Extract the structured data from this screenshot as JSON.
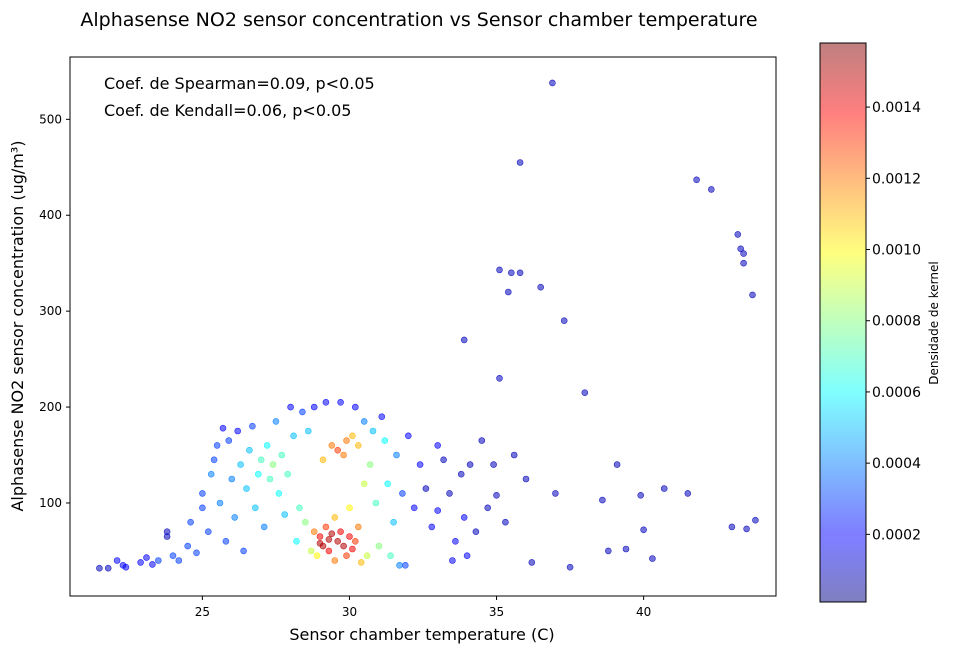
{
  "chart_data": {
    "type": "scatter",
    "title": "Alphasense NO2 sensor concentration vs Sensor chamber temperature",
    "xlabel": "Sensor chamber temperature (C)",
    "ylabel": "Alphasense NO2 sensor concentration (ug/m³)",
    "xlim": [
      20.5,
      44.5
    ],
    "ylim": [
      3,
      565
    ],
    "xticks": [
      25,
      30,
      35,
      40
    ],
    "yticks": [
      100,
      200,
      300,
      400,
      500
    ],
    "grid": false,
    "annotations": [
      "Coef. de Spearman=0.09, p<0.05",
      "Coef. de Kendall=0.06, p<0.05"
    ],
    "colorbar": {
      "label": "Densidade de kernel",
      "colormap": "jet",
      "range": [
        1e-05,
        0.00158
      ],
      "ticks": [
        0.0002,
        0.0004,
        0.0006,
        0.0008,
        0.001,
        0.0012,
        0.0014
      ],
      "tick_labels": [
        "0.0002",
        "0.0004",
        "0.0006",
        "0.0008",
        "0.0010",
        "0.0012",
        "0.0014"
      ]
    },
    "points": [
      {
        "x": 21.5,
        "y": 32,
        "d": 0.0001
      },
      {
        "x": 21.8,
        "y": 32,
        "d": 0.0001
      },
      {
        "x": 22.1,
        "y": 40,
        "d": 0.0002
      },
      {
        "x": 22.3,
        "y": 35,
        "d": 0.0002
      },
      {
        "x": 22.4,
        "y": 33,
        "d": 0.0002
      },
      {
        "x": 22.9,
        "y": 38,
        "d": 0.0002
      },
      {
        "x": 23.1,
        "y": 43,
        "d": 0.0002
      },
      {
        "x": 23.3,
        "y": 36,
        "d": 0.0002
      },
      {
        "x": 23.5,
        "y": 40,
        "d": 0.0003
      },
      {
        "x": 23.8,
        "y": 65,
        "d": 0.0001
      },
      {
        "x": 23.8,
        "y": 70,
        "d": 0.0001
      },
      {
        "x": 24.0,
        "y": 45,
        "d": 0.0003
      },
      {
        "x": 24.2,
        "y": 40,
        "d": 0.0003
      },
      {
        "x": 24.5,
        "y": 55,
        "d": 0.0003
      },
      {
        "x": 24.6,
        "y": 80,
        "d": 0.0003
      },
      {
        "x": 24.8,
        "y": 48,
        "d": 0.0003
      },
      {
        "x": 25.0,
        "y": 95,
        "d": 0.0003
      },
      {
        "x": 25.0,
        "y": 110,
        "d": 0.0003
      },
      {
        "x": 25.2,
        "y": 70,
        "d": 0.0003
      },
      {
        "x": 25.3,
        "y": 130,
        "d": 0.0004
      },
      {
        "x": 25.4,
        "y": 145,
        "d": 0.0003
      },
      {
        "x": 25.5,
        "y": 160,
        "d": 0.0003
      },
      {
        "x": 25.6,
        "y": 100,
        "d": 0.0004
      },
      {
        "x": 25.7,
        "y": 178,
        "d": 0.0002
      },
      {
        "x": 25.8,
        "y": 60,
        "d": 0.0003
      },
      {
        "x": 25.9,
        "y": 165,
        "d": 0.0003
      },
      {
        "x": 26.0,
        "y": 125,
        "d": 0.0004
      },
      {
        "x": 26.1,
        "y": 85,
        "d": 0.0004
      },
      {
        "x": 26.2,
        "y": 175,
        "d": 0.0002
      },
      {
        "x": 26.3,
        "y": 140,
        "d": 0.0005
      },
      {
        "x": 26.4,
        "y": 50,
        "d": 0.0003
      },
      {
        "x": 26.5,
        "y": 115,
        "d": 0.0005
      },
      {
        "x": 26.6,
        "y": 155,
        "d": 0.0005
      },
      {
        "x": 26.7,
        "y": 180,
        "d": 0.0003
      },
      {
        "x": 26.8,
        "y": 95,
        "d": 0.0005
      },
      {
        "x": 26.9,
        "y": 130,
        "d": 0.0006
      },
      {
        "x": 27.0,
        "y": 145,
        "d": 0.0007
      },
      {
        "x": 27.1,
        "y": 75,
        "d": 0.0004
      },
      {
        "x": 27.2,
        "y": 160,
        "d": 0.0006
      },
      {
        "x": 27.3,
        "y": 125,
        "d": 0.0007
      },
      {
        "x": 27.4,
        "y": 140,
        "d": 0.0008
      },
      {
        "x": 27.5,
        "y": 185,
        "d": 0.0004
      },
      {
        "x": 27.6,
        "y": 110,
        "d": 0.0006
      },
      {
        "x": 27.7,
        "y": 150,
        "d": 0.0007
      },
      {
        "x": 27.8,
        "y": 88,
        "d": 0.0005
      },
      {
        "x": 27.9,
        "y": 130,
        "d": 0.0007
      },
      {
        "x": 28.0,
        "y": 200,
        "d": 0.0002
      },
      {
        "x": 28.1,
        "y": 170,
        "d": 0.0005
      },
      {
        "x": 28.2,
        "y": 60,
        "d": 0.0006
      },
      {
        "x": 28.3,
        "y": 95,
        "d": 0.0007
      },
      {
        "x": 28.4,
        "y": 195,
        "d": 0.0003
      },
      {
        "x": 28.5,
        "y": 80,
        "d": 0.0008
      },
      {
        "x": 28.6,
        "y": 175,
        "d": 0.0005
      },
      {
        "x": 28.7,
        "y": 50,
        "d": 0.0009
      },
      {
        "x": 28.8,
        "y": 200,
        "d": 0.0002
      },
      {
        "x": 28.8,
        "y": 70,
        "d": 0.0012
      },
      {
        "x": 28.9,
        "y": 45,
        "d": 0.001
      },
      {
        "x": 29.0,
        "y": 65,
        "d": 0.0014
      },
      {
        "x": 29.0,
        "y": 58,
        "d": 0.0015
      },
      {
        "x": 29.1,
        "y": 55,
        "d": 0.0015
      },
      {
        "x": 29.1,
        "y": 145,
        "d": 0.0011
      },
      {
        "x": 29.2,
        "y": 75,
        "d": 0.0013
      },
      {
        "x": 29.2,
        "y": 205,
        "d": 0.0002
      },
      {
        "x": 29.3,
        "y": 62,
        "d": 0.0015
      },
      {
        "x": 29.3,
        "y": 50,
        "d": 0.0014
      },
      {
        "x": 29.4,
        "y": 160,
        "d": 0.0012
      },
      {
        "x": 29.4,
        "y": 68,
        "d": 0.0015
      },
      {
        "x": 29.5,
        "y": 40,
        "d": 0.0012
      },
      {
        "x": 29.5,
        "y": 85,
        "d": 0.0011
      },
      {
        "x": 29.6,
        "y": 155,
        "d": 0.0013
      },
      {
        "x": 29.6,
        "y": 60,
        "d": 0.0015
      },
      {
        "x": 29.7,
        "y": 205,
        "d": 0.0002
      },
      {
        "x": 29.7,
        "y": 70,
        "d": 0.0014
      },
      {
        "x": 29.8,
        "y": 150,
        "d": 0.0012
      },
      {
        "x": 29.8,
        "y": 55,
        "d": 0.0015
      },
      {
        "x": 29.9,
        "y": 165,
        "d": 0.0012
      },
      {
        "x": 29.9,
        "y": 45,
        "d": 0.0013
      },
      {
        "x": 30.0,
        "y": 65,
        "d": 0.0014
      },
      {
        "x": 30.0,
        "y": 95,
        "d": 0.001
      },
      {
        "x": 30.1,
        "y": 170,
        "d": 0.0011
      },
      {
        "x": 30.1,
        "y": 52,
        "d": 0.0014
      },
      {
        "x": 30.2,
        "y": 200,
        "d": 0.0002
      },
      {
        "x": 30.2,
        "y": 60,
        "d": 0.0013
      },
      {
        "x": 30.3,
        "y": 160,
        "d": 0.0011
      },
      {
        "x": 30.3,
        "y": 75,
        "d": 0.0012
      },
      {
        "x": 30.4,
        "y": 38,
        "d": 0.0011
      },
      {
        "x": 30.5,
        "y": 185,
        "d": 0.0004
      },
      {
        "x": 30.5,
        "y": 120,
        "d": 0.0009
      },
      {
        "x": 30.6,
        "y": 45,
        "d": 0.0009
      },
      {
        "x": 30.7,
        "y": 140,
        "d": 0.0008
      },
      {
        "x": 30.8,
        "y": 175,
        "d": 0.0005
      },
      {
        "x": 30.9,
        "y": 100,
        "d": 0.0007
      },
      {
        "x": 31.0,
        "y": 55,
        "d": 0.0008
      },
      {
        "x": 31.1,
        "y": 190,
        "d": 0.0002
      },
      {
        "x": 31.2,
        "y": 165,
        "d": 0.0006
      },
      {
        "x": 31.3,
        "y": 120,
        "d": 0.0006
      },
      {
        "x": 31.4,
        "y": 45,
        "d": 0.0007
      },
      {
        "x": 31.5,
        "y": 80,
        "d": 0.0005
      },
      {
        "x": 31.6,
        "y": 150,
        "d": 0.0004
      },
      {
        "x": 31.7,
        "y": 35,
        "d": 0.0004
      },
      {
        "x": 31.8,
        "y": 110,
        "d": 0.0003
      },
      {
        "x": 31.9,
        "y": 35,
        "d": 0.0003
      },
      {
        "x": 32.0,
        "y": 170,
        "d": 0.0002
      },
      {
        "x": 32.2,
        "y": 95,
        "d": 0.0002
      },
      {
        "x": 32.4,
        "y": 140,
        "d": 0.0002
      },
      {
        "x": 32.6,
        "y": 115,
        "d": 0.0001
      },
      {
        "x": 32.8,
        "y": 75,
        "d": 0.0002
      },
      {
        "x": 33.0,
        "y": 160,
        "d": 0.0002
      },
      {
        "x": 33.0,
        "y": 92,
        "d": 0.0002
      },
      {
        "x": 33.2,
        "y": 145,
        "d": 0.0001
      },
      {
        "x": 33.4,
        "y": 110,
        "d": 0.0001
      },
      {
        "x": 33.5,
        "y": 40,
        "d": 0.0002
      },
      {
        "x": 33.6,
        "y": 60,
        "d": 0.0002
      },
      {
        "x": 33.8,
        "y": 130,
        "d": 0.0001
      },
      {
        "x": 33.9,
        "y": 85,
        "d": 0.0002
      },
      {
        "x": 33.9,
        "y": 270,
        "d": 0.0001
      },
      {
        "x": 34.0,
        "y": 45,
        "d": 0.0002
      },
      {
        "x": 34.1,
        "y": 140,
        "d": 0.0001
      },
      {
        "x": 34.3,
        "y": 70,
        "d": 0.0001
      },
      {
        "x": 34.5,
        "y": 165,
        "d": 0.0001
      },
      {
        "x": 34.7,
        "y": 95,
        "d": 0.0001
      },
      {
        "x": 34.9,
        "y": 140,
        "d": 0.0001
      },
      {
        "x": 35.0,
        "y": 108,
        "d": 0.0001
      },
      {
        "x": 35.1,
        "y": 230,
        "d": 0.0001
      },
      {
        "x": 35.1,
        "y": 343,
        "d": 0.0001
      },
      {
        "x": 35.3,
        "y": 80,
        "d": 0.0001
      },
      {
        "x": 35.4,
        "y": 320,
        "d": 0.0001
      },
      {
        "x": 35.5,
        "y": 340,
        "d": 0.0001
      },
      {
        "x": 35.6,
        "y": 150,
        "d": 0.0001
      },
      {
        "x": 35.8,
        "y": 455,
        "d": 0.0001
      },
      {
        "x": 35.8,
        "y": 340,
        "d": 0.0001
      },
      {
        "x": 36.0,
        "y": 125,
        "d": 0.0001
      },
      {
        "x": 36.2,
        "y": 38,
        "d": 0.0001
      },
      {
        "x": 36.5,
        "y": 325,
        "d": 0.0001
      },
      {
        "x": 36.9,
        "y": 538,
        "d": 0.0001
      },
      {
        "x": 37.0,
        "y": 110,
        "d": 0.0001
      },
      {
        "x": 37.3,
        "y": 290,
        "d": 0.0001
      },
      {
        "x": 37.5,
        "y": 33,
        "d": 0.0001
      },
      {
        "x": 38.0,
        "y": 215,
        "d": 0.0001
      },
      {
        "x": 38.6,
        "y": 103,
        "d": 0.0001
      },
      {
        "x": 38.8,
        "y": 50,
        "d": 0.0001
      },
      {
        "x": 39.1,
        "y": 140,
        "d": 0.0001
      },
      {
        "x": 39.4,
        "y": 52,
        "d": 0.0001
      },
      {
        "x": 39.9,
        "y": 108,
        "d": 0.0001
      },
      {
        "x": 40.0,
        "y": 72,
        "d": 0.0001
      },
      {
        "x": 40.3,
        "y": 42,
        "d": 0.0001
      },
      {
        "x": 40.7,
        "y": 115,
        "d": 0.0001
      },
      {
        "x": 41.5,
        "y": 110,
        "d": 0.0001
      },
      {
        "x": 41.8,
        "y": 437,
        "d": 0.0001
      },
      {
        "x": 42.3,
        "y": 427,
        "d": 0.0001
      },
      {
        "x": 43.0,
        "y": 75,
        "d": 0.0001
      },
      {
        "x": 43.2,
        "y": 380,
        "d": 0.0001
      },
      {
        "x": 43.3,
        "y": 365,
        "d": 0.0001
      },
      {
        "x": 43.4,
        "y": 360,
        "d": 0.0001
      },
      {
        "x": 43.4,
        "y": 350,
        "d": 0.0001
      },
      {
        "x": 43.5,
        "y": 73,
        "d": 0.0001
      },
      {
        "x": 43.7,
        "y": 317,
        "d": 0.0001
      },
      {
        "x": 43.8,
        "y": 82,
        "d": 0.0001
      }
    ]
  }
}
